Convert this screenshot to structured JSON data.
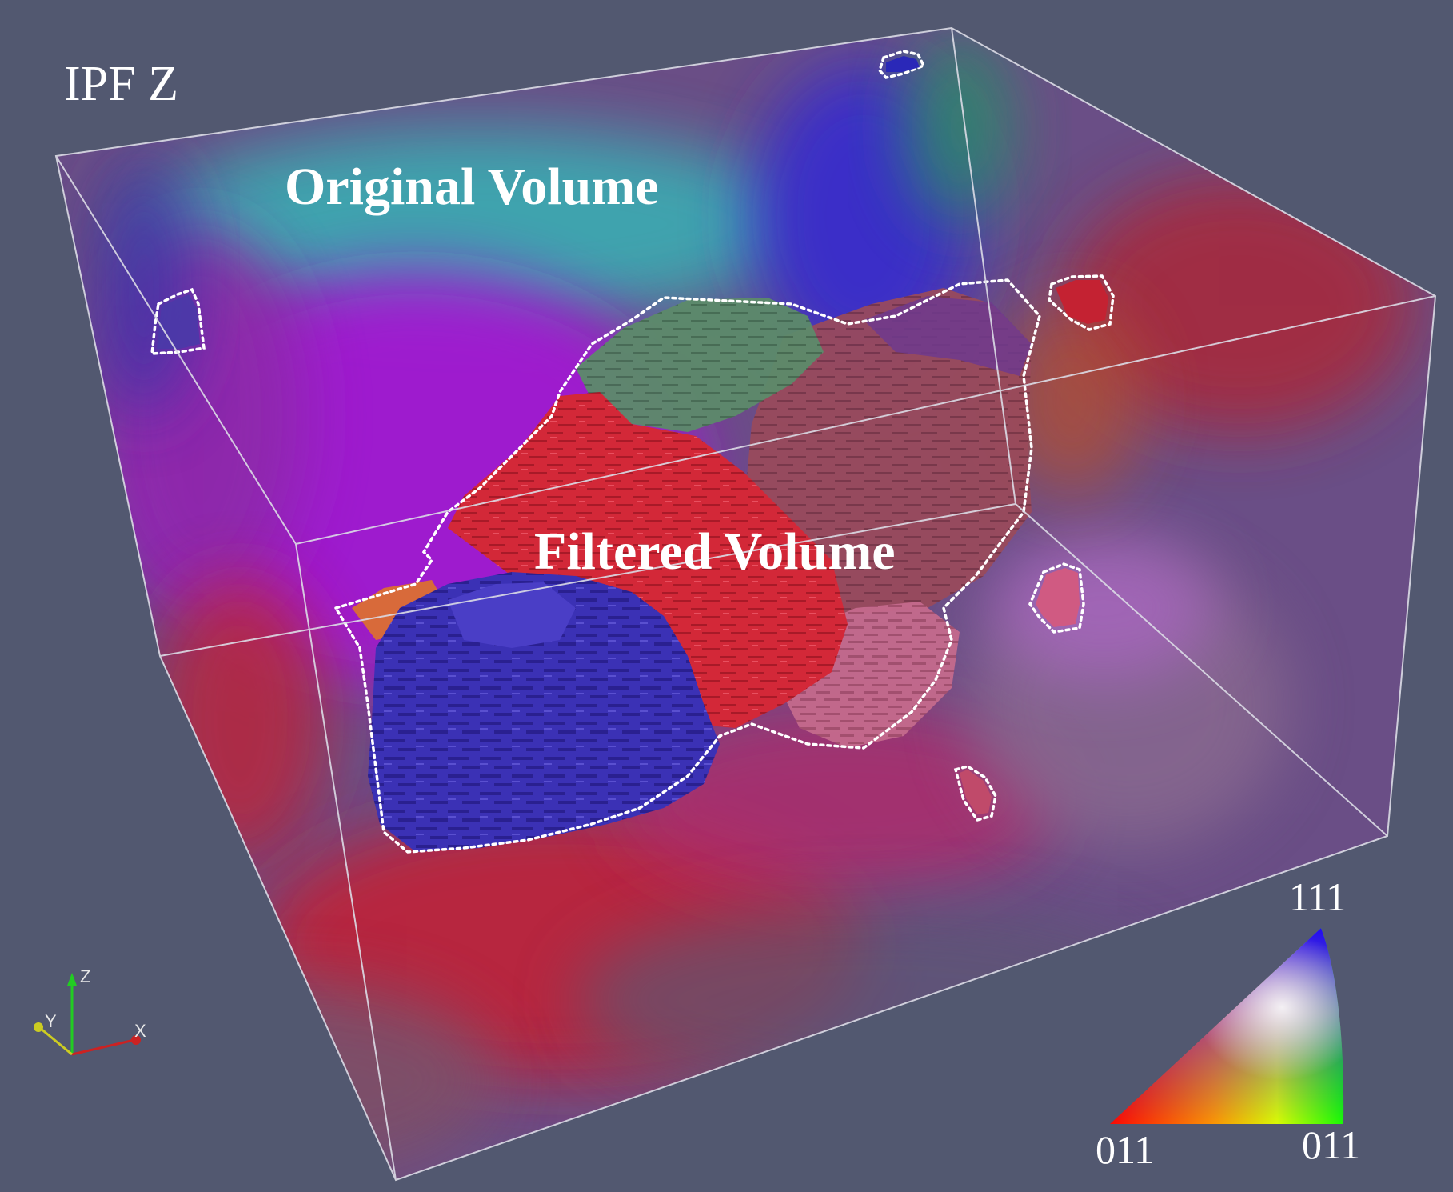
{
  "figure": {
    "title": "IPF Z",
    "original_volume_label": "Original Volume",
    "filtered_volume_label": "Filtered Volume"
  },
  "color_key": {
    "top_label": "111",
    "left_label": "011",
    "right_label": "011",
    "corner_colors": {
      "left": "#ff0000",
      "right": "#00ff00",
      "top": "#0000ff"
    }
  },
  "axes_triad": {
    "z": "Z",
    "y": "Y",
    "x": "X"
  },
  "colors": {
    "background": "#525870",
    "box_edges": "#d8d8e0",
    "grain_blue": "#3a2fb0",
    "grain_red": "#d42a3a",
    "grain_teal": "#4aa8a0",
    "grain_magenta": "#b030d0"
  }
}
